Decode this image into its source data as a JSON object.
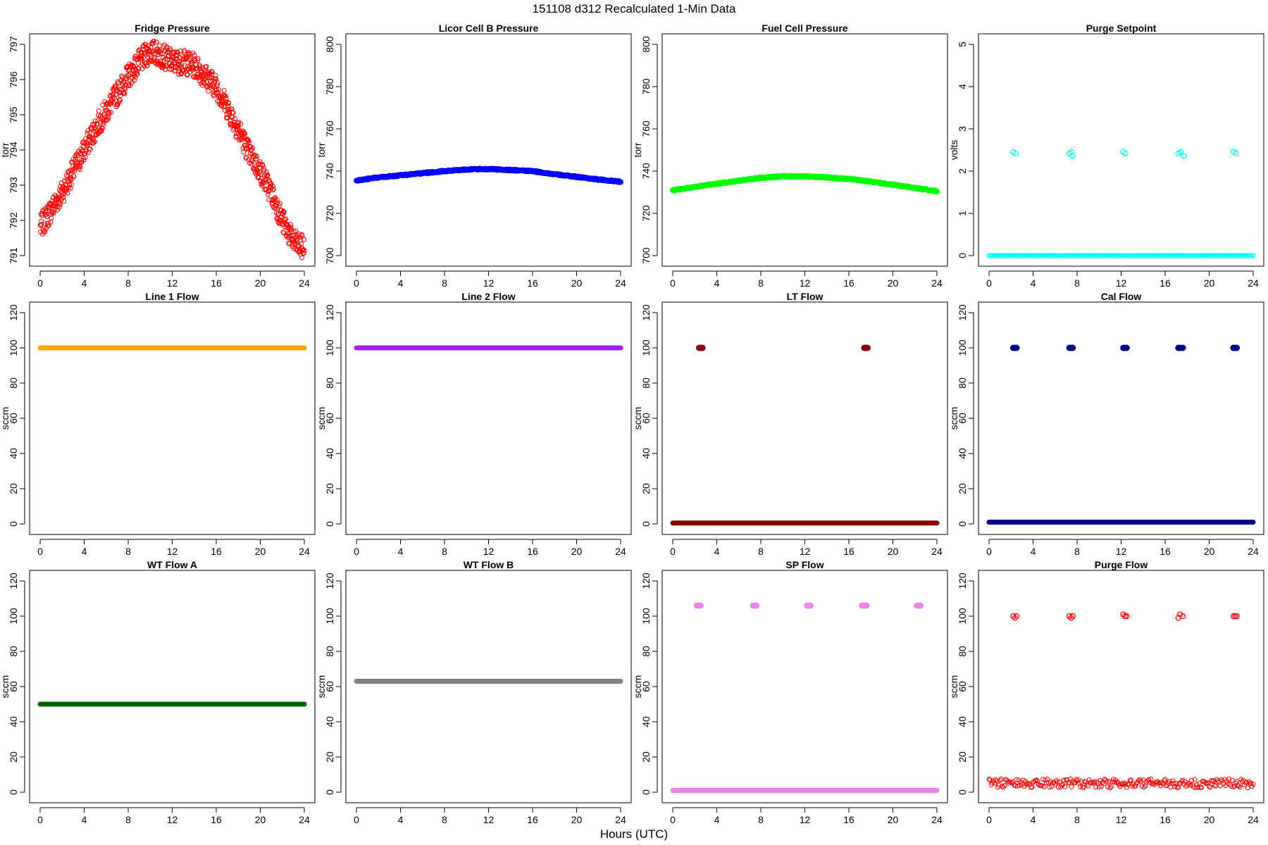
{
  "figure": {
    "title": "151108   d312   Recalculated 1-Min Data",
    "xlabel": "Hours (UTC)"
  },
  "chart_data": [
    {
      "type": "scatter",
      "title": "Fridge Pressure",
      "ylabel": "torr",
      "color": "#ff0000",
      "marker": "open-circle",
      "xlim": [
        0,
        24
      ],
      "ylim": [
        791,
        797
      ],
      "xticks": [
        0,
        4,
        8,
        12,
        16,
        20,
        24
      ],
      "yticks": [
        791,
        792,
        793,
        794,
        795,
        796,
        797
      ],
      "series": [
        {
          "x": [
            0,
            1,
            2,
            3,
            4,
            5,
            6,
            7,
            8,
            9,
            10,
            11,
            12,
            13,
            14,
            15,
            16,
            17,
            18,
            19,
            20,
            21,
            22,
            23,
            24
          ],
          "y": [
            791.8,
            792.3,
            792.8,
            793.4,
            794.0,
            794.6,
            795.1,
            795.6,
            796.1,
            796.5,
            796.8,
            796.7,
            796.5,
            796.5,
            796.4,
            796.1,
            795.8,
            795.2,
            794.6,
            793.9,
            793.4,
            792.8,
            792.0,
            791.4,
            791.2
          ]
        }
      ]
    },
    {
      "type": "scatter",
      "title": "Licor Cell B Pressure",
      "ylabel": "torr",
      "color": "#0000ff",
      "marker": "filled",
      "xlim": [
        0,
        24
      ],
      "ylim": [
        700,
        800
      ],
      "xticks": [
        0,
        4,
        8,
        12,
        16,
        20,
        24
      ],
      "yticks": [
        700,
        720,
        740,
        760,
        780,
        800
      ],
      "series": [
        {
          "x": [
            0,
            2,
            4,
            6,
            8,
            10,
            12,
            14,
            16,
            18,
            20,
            22,
            24
          ],
          "y": [
            735.5,
            737.0,
            738.0,
            739.0,
            740.0,
            740.8,
            741.0,
            740.5,
            740.0,
            738.5,
            737.3,
            736.0,
            735.0
          ]
        }
      ]
    },
    {
      "type": "scatter",
      "title": "Fuel Cell Pressure",
      "ylabel": "torr",
      "color": "#00ff00",
      "marker": "filled",
      "xlim": [
        0,
        24
      ],
      "ylim": [
        700,
        800
      ],
      "xticks": [
        0,
        4,
        8,
        12,
        16,
        20,
        24
      ],
      "yticks": [
        700,
        720,
        740,
        760,
        780,
        800
      ],
      "series": [
        {
          "x": [
            0,
            2,
            4,
            6,
            8,
            10,
            12,
            14,
            16,
            18,
            20,
            22,
            24
          ],
          "y": [
            731.0,
            732.5,
            734.0,
            735.5,
            736.8,
            737.5,
            737.5,
            737.0,
            736.3,
            735.0,
            733.5,
            732.0,
            730.5
          ]
        }
      ]
    },
    {
      "type": "scatter",
      "title": "Purge Setpoint",
      "ylabel": "volts",
      "color": "#00ffff",
      "marker": "open-circle",
      "xlim": [
        0,
        24
      ],
      "ylim": [
        0,
        5
      ],
      "xticks": [
        0,
        4,
        8,
        12,
        16,
        20,
        24
      ],
      "yticks": [
        0,
        1,
        2,
        3,
        4,
        5
      ],
      "baseline": 0,
      "series": [
        {
          "x": [
            2.2,
            2.4,
            7.3,
            7.5,
            7.6,
            12.2,
            12.4,
            17.2,
            17.4,
            17.7,
            22.2,
            22.4
          ],
          "y": [
            2.45,
            2.42,
            2.42,
            2.45,
            2.36,
            2.46,
            2.42,
            2.42,
            2.45,
            2.36,
            2.46,
            2.43
          ]
        }
      ]
    },
    {
      "type": "scatter",
      "title": "Line 1 Flow",
      "ylabel": "sccm",
      "color": "#ffa500",
      "marker": "filled",
      "xlim": [
        0,
        24
      ],
      "ylim": [
        0,
        120
      ],
      "xticks": [
        0,
        4,
        8,
        12,
        16,
        20,
        24
      ],
      "yticks": [
        0,
        20,
        40,
        60,
        80,
        100,
        120
      ],
      "baseline": 100,
      "series": [
        {
          "x": [],
          "y": []
        }
      ]
    },
    {
      "type": "scatter",
      "title": "Line 2 Flow",
      "ylabel": "sccm",
      "color": "#a020f0",
      "marker": "filled",
      "xlim": [
        0,
        24
      ],
      "ylim": [
        0,
        120
      ],
      "xticks": [
        0,
        4,
        8,
        12,
        16,
        20,
        24
      ],
      "yticks": [
        0,
        20,
        40,
        60,
        80,
        100,
        120
      ],
      "baseline": 100,
      "series": [
        {
          "x": [],
          "y": []
        }
      ]
    },
    {
      "type": "scatter",
      "title": "LT Flow",
      "ylabel": "sccm",
      "color": "#8b0000",
      "marker": "filled",
      "xlim": [
        0,
        24
      ],
      "ylim": [
        0,
        120
      ],
      "xticks": [
        0,
        4,
        8,
        12,
        16,
        20,
        24
      ],
      "yticks": [
        0,
        20,
        40,
        60,
        80,
        100,
        120
      ],
      "baseline": 0.5,
      "series": [
        {
          "x": [
            2.4,
            2.5,
            2.6,
            2.7,
            17.4,
            17.5,
            17.6,
            17.7
          ],
          "y": [
            100,
            100,
            100,
            100,
            100,
            100,
            100,
            100
          ]
        }
      ]
    },
    {
      "type": "scatter",
      "title": "Cal Flow",
      "ylabel": "sccm",
      "color": "#00008b",
      "marker": "filled",
      "xlim": [
        0,
        24
      ],
      "ylim": [
        0,
        120
      ],
      "xticks": [
        0,
        4,
        8,
        12,
        16,
        20,
        24
      ],
      "yticks": [
        0,
        20,
        40,
        60,
        80,
        100,
        120
      ],
      "baseline": 1,
      "series": [
        {
          "x": [
            2.2,
            2.35,
            2.5,
            7.3,
            7.45,
            7.6,
            12.2,
            12.35,
            12.5,
            17.2,
            17.35,
            17.6,
            22.2,
            22.35,
            22.5
          ],
          "y": [
            100,
            100,
            100,
            100,
            100,
            100,
            100,
            100,
            100,
            100,
            100,
            100,
            100,
            100,
            100
          ]
        }
      ]
    },
    {
      "type": "scatter",
      "title": "WT Flow A",
      "ylabel": "sccm",
      "color": "#006400",
      "marker": "filled",
      "xlim": [
        0,
        24
      ],
      "ylim": [
        0,
        120
      ],
      "xticks": [
        0,
        4,
        8,
        12,
        16,
        20,
        24
      ],
      "yticks": [
        0,
        20,
        40,
        60,
        80,
        100,
        120
      ],
      "baseline": 50,
      "series": [
        {
          "x": [],
          "y": []
        }
      ]
    },
    {
      "type": "scatter",
      "title": "WT Flow B",
      "ylabel": "sccm",
      "color": "#808080",
      "marker": "filled",
      "xlim": [
        0,
        24
      ],
      "ylim": [
        0,
        120
      ],
      "xticks": [
        0,
        4,
        8,
        12,
        16,
        20,
        24
      ],
      "yticks": [
        0,
        20,
        40,
        60,
        80,
        100,
        120
      ],
      "baseline": 63,
      "series": [
        {
          "x": [],
          "y": []
        }
      ]
    },
    {
      "type": "scatter",
      "title": "SP Flow",
      "ylabel": "sccm",
      "color": "#ee82ee",
      "marker": "filled",
      "xlim": [
        0,
        24
      ],
      "ylim": [
        0,
        120
      ],
      "xticks": [
        0,
        4,
        8,
        12,
        16,
        20,
        24
      ],
      "yticks": [
        0,
        20,
        40,
        60,
        80,
        100,
        120
      ],
      "baseline": 1,
      "series": [
        {
          "x": [
            2.2,
            2.35,
            2.5,
            7.3,
            7.45,
            7.6,
            12.2,
            12.35,
            12.5,
            17.2,
            17.35,
            17.6,
            22.2,
            22.35,
            22.5
          ],
          "y": [
            106,
            106,
            106,
            106,
            106,
            106,
            106,
            106,
            106,
            106,
            106,
            106,
            106,
            106,
            106
          ]
        }
      ]
    },
    {
      "type": "scatter",
      "title": "Purge Flow",
      "ylabel": "sccm",
      "color": "#ff0000",
      "marker": "open-circle",
      "xlim": [
        0,
        24
      ],
      "ylim": [
        0,
        120
      ],
      "xticks": [
        0,
        4,
        8,
        12,
        16,
        20,
        24
      ],
      "yticks": [
        0,
        20,
        40,
        60,
        80,
        100,
        120
      ],
      "baseline": 5,
      "series": [
        {
          "x": [
            2.2,
            2.35,
            2.5,
            7.3,
            7.45,
            7.6,
            12.2,
            12.35,
            12.5,
            17.2,
            17.35,
            17.6,
            22.2,
            22.35,
            22.5
          ],
          "y": [
            100,
            99,
            100,
            100,
            99,
            100,
            101,
            100,
            100,
            99,
            101,
            100,
            100,
            100,
            100
          ]
        }
      ]
    }
  ]
}
